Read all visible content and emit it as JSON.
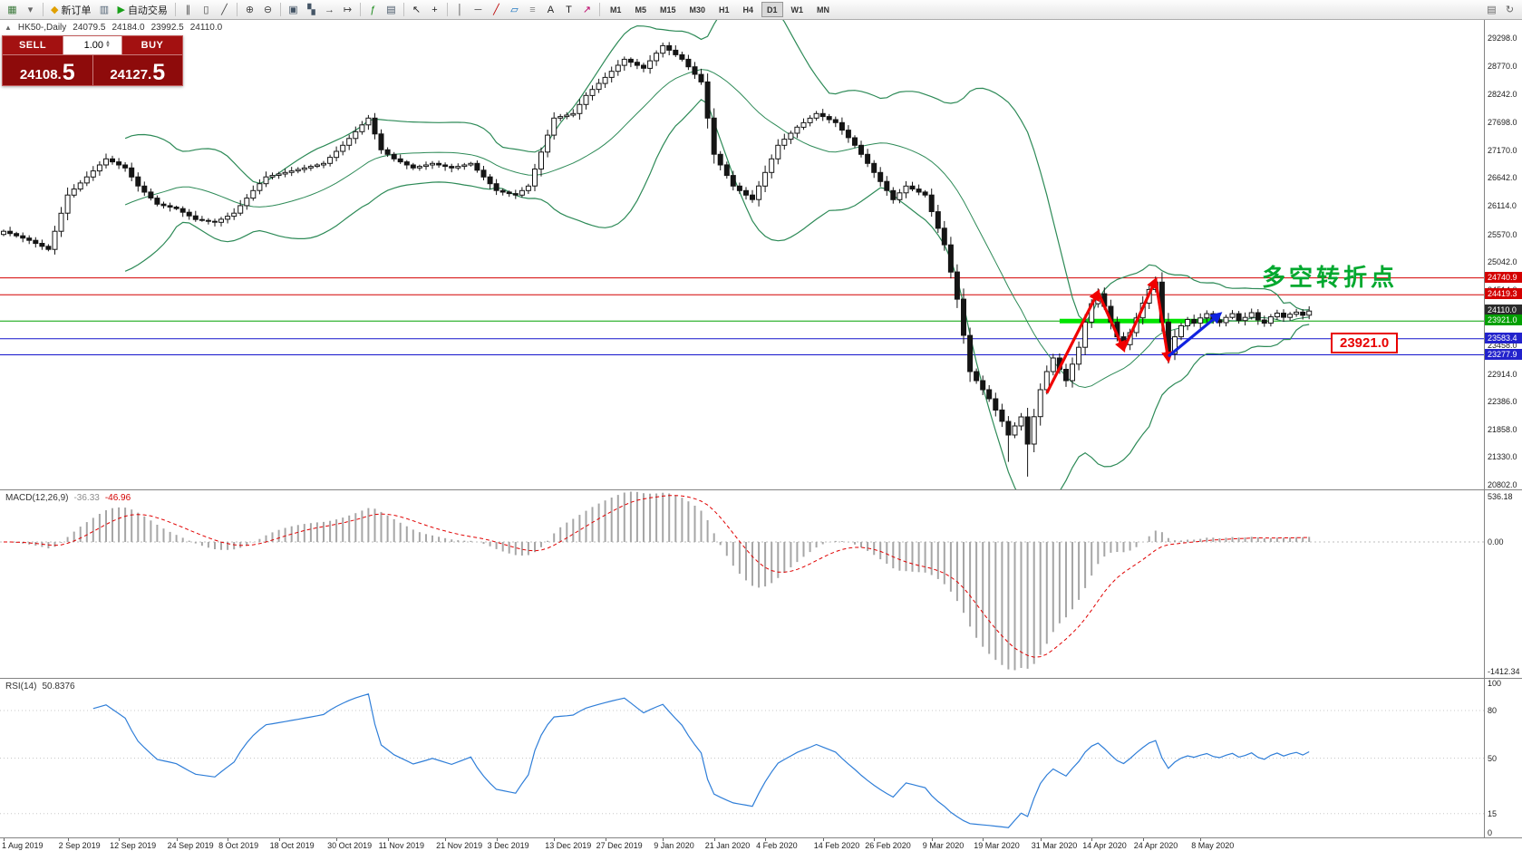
{
  "toolbar": {
    "timeframes": [
      "M1",
      "M5",
      "M15",
      "M30",
      "H1",
      "H4",
      "D1",
      "W1",
      "MN"
    ],
    "active_timeframe": "D1",
    "items": [
      {
        "type": "icon",
        "name": "new-chart-icon",
        "glyph": "▦",
        "color": "#3c7a3c"
      },
      {
        "type": "icon",
        "name": "chart-profiles-icon",
        "glyph": "▾",
        "color": "#666"
      },
      {
        "type": "sep"
      },
      {
        "type": "button",
        "name": "new-order-button",
        "glyph": "◆",
        "color": "#e0a000",
        "label": "新订单"
      },
      {
        "type": "icon",
        "name": "market-watch-icon",
        "glyph": "▥",
        "color": "#556677"
      },
      {
        "type": "button",
        "name": "auto-trading-button",
        "glyph": "▶",
        "color": "#19a019",
        "label": "自动交易"
      },
      {
        "type": "sep"
      },
      {
        "type": "icon",
        "name": "bar-chart-icon",
        "glyph": "∥",
        "color": "#444444"
      },
      {
        "type": "icon",
        "name": "candlestick-chart-icon",
        "glyph": "▯",
        "color": "#444444"
      },
      {
        "type": "icon",
        "name": "line-chart-icon",
        "glyph": "╱",
        "color": "#444444"
      },
      {
        "type": "sep"
      },
      {
        "type": "icon",
        "name": "zoom-in-icon",
        "glyph": "⊕",
        "color": "#444444"
      },
      {
        "type": "icon",
        "name": "zoom-out-icon",
        "glyph": "⊖",
        "color": "#444444"
      },
      {
        "type": "sep"
      },
      {
        "type": "icon",
        "name": "tile-windows-icon",
        "glyph": "▣",
        "color": "#445566"
      },
      {
        "type": "icon",
        "name": "cascade-windows-icon",
        "glyph": "▚",
        "color": "#445566"
      },
      {
        "type": "icon",
        "name": "auto-scroll-icon",
        "glyph": "→",
        "color": "#444444"
      },
      {
        "type": "icon",
        "name": "chart-shift-icon",
        "glyph": "↦",
        "color": "#444444"
      },
      {
        "type": "sep"
      },
      {
        "type": "icon",
        "name": "indicators-icon",
        "glyph": "ƒ",
        "color": "#1a8a1a"
      },
      {
        "type": "icon",
        "name": "templates-icon",
        "glyph": "▤",
        "color": "#445566"
      },
      {
        "type": "sep"
      },
      {
        "type": "icon",
        "name": "cursor-icon",
        "glyph": "↖",
        "color": "#222222"
      },
      {
        "type": "icon",
        "name": "crosshair-icon",
        "glyph": "+",
        "color": "#222222"
      },
      {
        "type": "sep"
      },
      {
        "type": "icon",
        "name": "vertical-line-icon",
        "glyph": "│",
        "color": "#444444"
      },
      {
        "type": "icon",
        "name": "horizontal-line-icon",
        "glyph": "─",
        "color": "#444444"
      },
      {
        "type": "icon",
        "name": "trendline-icon",
        "glyph": "╱",
        "color": "#bb0000"
      },
      {
        "type": "icon",
        "name": "channel-icon",
        "glyph": "▱",
        "color": "#0066bb"
      },
      {
        "type": "icon",
        "name": "fibonacci-icon",
        "glyph": "≡",
        "color": "#888888"
      },
      {
        "type": "icon",
        "name": "text-icon",
        "glyph": "A",
        "color": "#222222"
      },
      {
        "type": "icon",
        "name": "text-label-icon",
        "glyph": "T",
        "color": "#222222"
      },
      {
        "type": "icon",
        "name": "arrows-tool-icon",
        "glyph": "↗",
        "color": "#bb0066"
      },
      {
        "type": "sep"
      },
      {
        "type": "tf"
      },
      {
        "type": "spacer"
      },
      {
        "type": "icon",
        "name": "page-icon",
        "glyph": "▤",
        "color": "#666666"
      },
      {
        "type": "icon",
        "name": "refresh-icon",
        "glyph": "↻",
        "color": "#666666"
      }
    ]
  },
  "header": {
    "symbol": "HK50-,Daily",
    "open": "24079.5",
    "high": "24184.0",
    "low": "23992.5",
    "close": "24110.0"
  },
  "trade_panel": {
    "sell_label": "SELL",
    "buy_label": "BUY",
    "volume": "1.00",
    "sell_price_main": "24108.",
    "sell_price_pip": "5",
    "buy_price_main": "24127.",
    "buy_price_pip": "5"
  },
  "annotations": {
    "turning_point": "多空转折点",
    "price_callout": "23921.0"
  },
  "macd_label": {
    "name": "MACD(12,26,9)",
    "main": "-36.33",
    "signal": "-46.96"
  },
  "rsi_label": {
    "name": "RSI(14)",
    "value": "50.8376"
  },
  "chart_data": {
    "type": "candlestick",
    "title": "HK50-,Daily",
    "ohlc_last": [
      24079.5,
      24184.0,
      23992.5,
      24110.0
    ],
    "y_range": [
      20716,
      29650
    ],
    "price_ticks": [
      29298.0,
      28770.0,
      28242.0,
      27698.0,
      27170.0,
      26642.0,
      26114.0,
      25570.0,
      25042.0,
      24514.0,
      23986.0,
      23458.0,
      22914.0,
      22386.0,
      21858.0,
      21330.0,
      20802.0
    ],
    "price_markers": [
      {
        "value": 24740.9,
        "bg": "#d40000"
      },
      {
        "value": 24419.3,
        "bg": "#d40000"
      },
      {
        "value": 24110.0,
        "bg": "#2b2b2b"
      },
      {
        "value": 23921.0,
        "bg": "#00a000"
      },
      {
        "value": 23583.4,
        "bg": "#2222cc"
      },
      {
        "value": 23277.9,
        "bg": "#2222cc"
      }
    ],
    "hlines": [
      {
        "price": 24740.9,
        "color": "#d40000",
        "width": 1
      },
      {
        "price": 24419.3,
        "color": "#d40000",
        "width": 1
      },
      {
        "price": 23921.0,
        "color": "#00a000",
        "width": 1
      },
      {
        "price": 23583.4,
        "color": "#1414cc",
        "width": 1
      },
      {
        "price": 23277.9,
        "color": "#1414cc",
        "width": 1
      }
    ],
    "highlight_segment": {
      "price": 23921.0,
      "from": 165,
      "to": 189,
      "color": "#00e400",
      "width": 5
    },
    "arrows": [
      {
        "i1": 163,
        "p1": 22550,
        "i2": 171,
        "p2": 24470,
        "color": "#f00000"
      },
      {
        "i1": 171,
        "p1": 24470,
        "i2": 175,
        "p2": 23380,
        "color": "#f00000"
      },
      {
        "i1": 175,
        "p1": 23380,
        "i2": 180,
        "p2": 24700,
        "color": "#f00000"
      },
      {
        "i1": 180,
        "p1": 24700,
        "i2": 182,
        "p2": 23180,
        "color": "#f00000"
      },
      {
        "i1": 182,
        "p1": 23250,
        "i2": 190,
        "p2": 24050,
        "color": "#0f22e0"
      }
    ],
    "bollinger": {
      "period": 20,
      "deviation": 2,
      "color": "#2d8a57"
    },
    "macd": {
      "params": [
        12,
        26,
        9
      ],
      "range": [
        -1412.34,
        536.18
      ],
      "ticks": [
        "536.18",
        "0.00",
        "-1412.34"
      ]
    },
    "rsi": {
      "period": 14,
      "levels": [
        100,
        80,
        50,
        15,
        0
      ],
      "range": [
        0,
        100
      ]
    },
    "low_overrides": [
      [
        160,
        20960
      ],
      [
        157,
        21240
      ]
    ],
    "date_labels": [
      {
        "t": "1 Aug 2019",
        "i": 0
      },
      {
        "t": "2 Sep 2019",
        "i": 10
      },
      {
        "t": "12 Sep 2019",
        "i": 18
      },
      {
        "t": "24 Sep 2019",
        "i": 27
      },
      {
        "t": "8 Oct 2019",
        "i": 35
      },
      {
        "t": "18 Oct 2019",
        "i": 43
      },
      {
        "t": "30 Oct 2019",
        "i": 52
      },
      {
        "t": "11 Nov 2019",
        "i": 60
      },
      {
        "t": "21 Nov 2019",
        "i": 69
      },
      {
        "t": "3 Dec 2019",
        "i": 77
      },
      {
        "t": "13 Dec 2019",
        "i": 86
      },
      {
        "t": "27 Dec 2019",
        "i": 94
      },
      {
        "t": "9 Jan 2020",
        "i": 103
      },
      {
        "t": "21 Jan 2020",
        "i": 111
      },
      {
        "t": "4 Feb 2020",
        "i": 119
      },
      {
        "t": "14 Feb 2020",
        "i": 128
      },
      {
        "t": "26 Feb 2020",
        "i": 136
      },
      {
        "t": "9 Mar 2020",
        "i": 145
      },
      {
        "t": "19 Mar 2020",
        "i": 153
      },
      {
        "t": "31 Mar 2020",
        "i": 162
      },
      {
        "t": "14 Apr 2020",
        "i": 170
      },
      {
        "t": "24 Apr 2020",
        "i": 178
      },
      {
        "t": "8 May 2020",
        "i": 187
      }
    ],
    "closes": [
      25628,
      25585,
      25542,
      25499,
      25456,
      25398,
      25341,
      25283,
      25628,
      25972,
      26317,
      26432,
      26547,
      26662,
      26777,
      26891,
      27006,
      26949,
      26891,
      26834,
      26662,
      26489,
      26374,
      26260,
      26145,
      26116,
      26088,
      26059,
      25990,
      25921,
      25852,
      25835,
      25817,
      25800,
      25858,
      25915,
      25973,
      26116,
      26260,
      26403,
      26533,
      26662,
      26691,
      26719,
      26748,
      26777,
      26805,
      26834,
      26863,
      26891,
      26920,
      27035,
      27150,
      27265,
      27394,
      27523,
      27652,
      27782,
      27480,
      27179,
      27093,
      27006,
      26949,
      26891,
      26834,
      26863,
      26891,
      26920,
      26891,
      26863,
      26834,
      26863,
      26891,
      26920,
      26791,
      26662,
      26533,
      26403,
      26374,
      26345,
      26317,
      26403,
      26489,
      26812,
      27135,
      27458,
      27782,
      27811,
      27839,
      27868,
      28040,
      28213,
      28328,
      28442,
      28557,
      28672,
      28787,
      28902,
      28845,
      28787,
      28730,
      28873,
      29017,
      29160,
      29074,
      28988,
      28902,
      28758,
      28614,
      28471,
      27782,
      27093,
      26892,
      26690,
      26489,
      26403,
      26317,
      26231,
      26490,
      26748,
      27006,
      27265,
      27380,
      27494,
      27609,
      27695,
      27781,
      27868,
      27811,
      27753,
      27696,
      27552,
      27408,
      27265,
      27093,
      26920,
      26748,
      26576,
      26403,
      26231,
      26360,
      26489,
      26432,
      26374,
      26317,
      26001,
      25686,
      25370,
      24853,
      24336,
      23647,
      22958,
      22786,
      22614,
      22441,
      22226,
      22010,
      21752,
      21924,
      22096,
      21579,
      22100,
      22613,
      22958,
      23216,
      23001,
      22786,
      23100,
      23420,
      23900,
      24250,
      24440,
      24200,
      23900,
      23620,
      23470,
      23700,
      23980,
      24260,
      24520,
      24660,
      23900,
      23300,
      23620,
      23830,
      23950,
      23880,
      23980,
      24060,
      23940,
      23890,
      23990,
      24060,
      23930,
      23990,
      24080,
      23940,
      23880,
      24000,
      24070,
      23990,
      24050,
      24090,
      24030,
      24110
    ]
  }
}
